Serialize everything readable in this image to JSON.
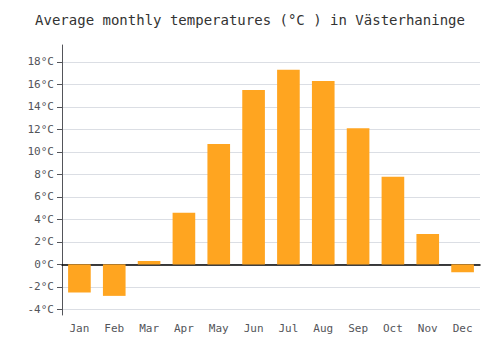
{
  "chart_data": {
    "type": "bar",
    "title": "Average monthly temperatures (°C ) in Västerhaninge",
    "categories": [
      "Jan",
      "Feb",
      "Mar",
      "Apr",
      "May",
      "Jun",
      "Jul",
      "Aug",
      "Sep",
      "Oct",
      "Nov",
      "Dec"
    ],
    "values": [
      -2.5,
      -2.8,
      0.3,
      4.6,
      10.7,
      15.5,
      17.3,
      16.3,
      12.1,
      7.8,
      2.7,
      -0.7
    ],
    "color": "#FFA520",
    "ylim": [
      -4.5,
      19.5
    ],
    "yticks": [
      {
        "value": -4,
        "label": "-4°C"
      },
      {
        "value": -2,
        "label": "-2°C"
      },
      {
        "value": 0,
        "label": "0°C"
      },
      {
        "value": 2,
        "label": "2°C"
      },
      {
        "value": 4,
        "label": "4°C"
      },
      {
        "value": 6,
        "label": "6°C"
      },
      {
        "value": 8,
        "label": "8°C"
      },
      {
        "value": 10,
        "label": "10°C"
      },
      {
        "value": 12,
        "label": "12°C"
      },
      {
        "value": 14,
        "label": "14°C"
      },
      {
        "value": 16,
        "label": "16°C"
      },
      {
        "value": 18,
        "label": "18°C"
      }
    ],
    "grid": true
  }
}
